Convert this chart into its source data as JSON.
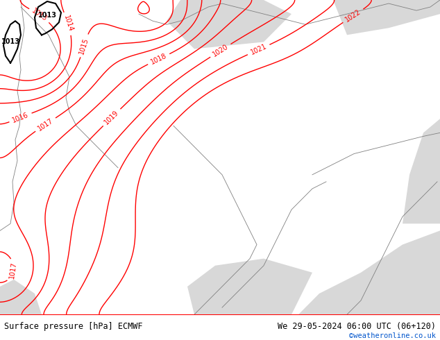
{
  "title_left": "Surface pressure [hPa] ECMWF",
  "title_right": "We 29-05-2024 06:00 UTC (06+120)",
  "copyright": "©weatheronline.co.uk",
  "bg_color": "#ffffff",
  "map_bg_color": "#c8e89a",
  "sea_color": "#d8d8d8",
  "text_color_black": "#000000",
  "text_color_blue": "#0055cc",
  "contour_color": "#ff0000",
  "figsize": [
    6.34,
    4.9
  ],
  "dpi": 100
}
